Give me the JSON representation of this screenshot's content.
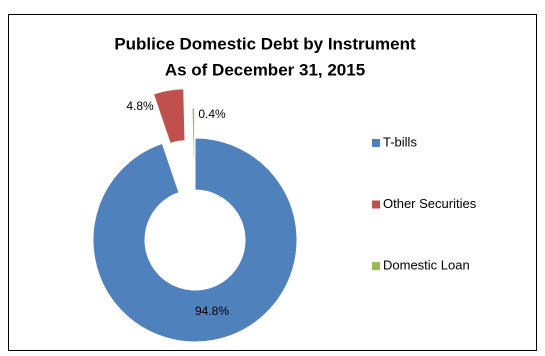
{
  "chart_data": {
    "type": "pie",
    "title": "Publice Domestic Debt by Instrument",
    "subtitle": "As of December 31, 2015",
    "categories": [
      "T-bills",
      "Other Securities",
      "Domestic Loan"
    ],
    "values": [
      94.8,
      4.8,
      0.4
    ],
    "value_labels": [
      "94.8%",
      "4.8%",
      "0.4%"
    ],
    "colors": [
      "#4f81bd",
      "#c0504d",
      "#9bbb59"
    ],
    "legend": "right"
  }
}
